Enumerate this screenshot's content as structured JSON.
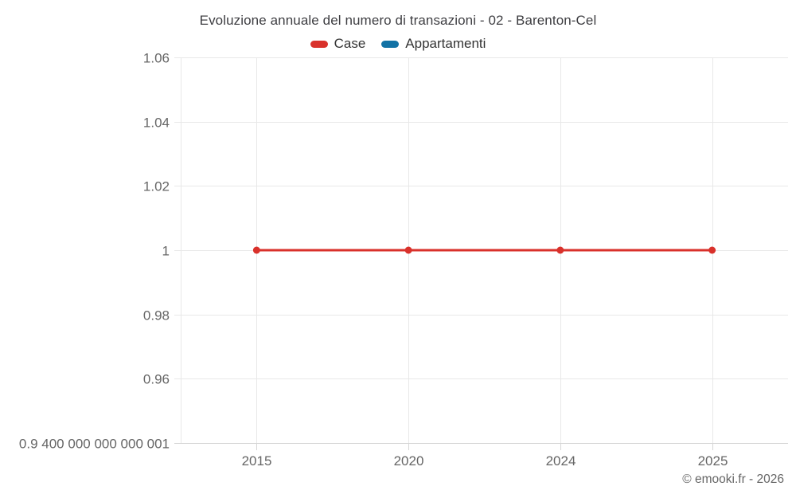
{
  "title": "Evoluzione annuale del numero di transazioni - 02 - Barenton-Cel",
  "footer": {
    "copyright": "© emooki.fr - 2026"
  },
  "colors": {
    "case_red": "#d9312b",
    "appartamenti_blue": "#1272a5",
    "gridline": "#e8e8e8",
    "axis_line": "#d6d6d6",
    "tick_label": "#666666",
    "title_text": "#3e3e42",
    "legend_text": "#333333"
  },
  "chart_data": {
    "type": "line",
    "title": "Evoluzione annuale del numero di transazioni - 02 - Barenton-Cel",
    "xlabel": "",
    "ylabel": "",
    "categories": [
      "2015",
      "2020",
      "2024",
      "2025"
    ],
    "series": [
      {
        "name": "Case",
        "color": "#d9312b",
        "values": [
          1,
          1,
          1,
          1
        ]
      },
      {
        "name": "Appartamenti",
        "color": "#1272a5",
        "values": []
      }
    ],
    "yticks": [
      {
        "value": 1.06,
        "label": "1.06"
      },
      {
        "value": 1.04,
        "label": "1.04"
      },
      {
        "value": 1.02,
        "label": "1.02"
      },
      {
        "value": 1.0,
        "label": "1"
      },
      {
        "value": 0.98,
        "label": "0.98"
      },
      {
        "value": 0.96,
        "label": "0.96"
      },
      {
        "value": 0.94,
        "label": "0.9 400 000 000 000 001"
      }
    ],
    "ylim": [
      0.94,
      1.06
    ],
    "grid": true,
    "legend_position": "top",
    "marker": "circle"
  }
}
